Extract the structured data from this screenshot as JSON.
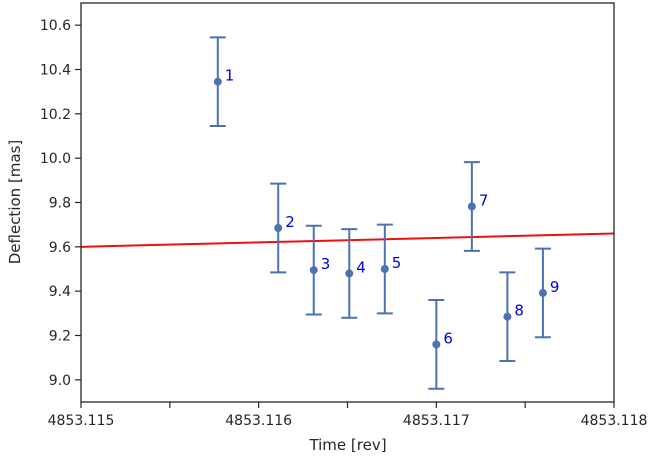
{
  "chart_data": {
    "type": "scatter",
    "title": "",
    "xlabel": "Time [rev]",
    "ylabel": "Deflection [mas]",
    "xlim": [
      4853.115,
      4853.118
    ],
    "ylim": [
      8.9,
      10.7
    ],
    "x_ticks": [
      4853.115,
      4853.1155,
      4853.116,
      4853.1165,
      4853.117,
      4853.1175,
      4853.118
    ],
    "x_tick_labels": [
      "4853.115",
      "",
      "4853.116",
      "",
      "4853.117",
      "",
      "4853.118"
    ],
    "y_ticks": [
      9.0,
      9.2,
      9.4,
      9.6,
      9.8,
      10.0,
      10.2,
      10.4,
      10.6
    ],
    "y_tick_labels": [
      "9.0",
      "9.2",
      "9.4",
      "9.6",
      "9.8",
      "10.0",
      "10.2",
      "10.4",
      "10.6"
    ],
    "grid": false,
    "colors": {
      "points": "#4c72b0",
      "fit_line": "#ee1111",
      "labels": "#0000dd",
      "axes": "#262626"
    },
    "series": [
      {
        "type": "errorbar",
        "points": [
          {
            "label": "1",
            "x": 4853.11577,
            "y": 10.345,
            "err": 0.2
          },
          {
            "label": "2",
            "x": 4853.11611,
            "y": 9.685,
            "err": 0.2
          },
          {
            "label": "3",
            "x": 4853.11631,
            "y": 9.495,
            "err": 0.2
          },
          {
            "label": "4",
            "x": 4853.11651,
            "y": 9.48,
            "err": 0.2
          },
          {
            "label": "5",
            "x": 4853.11671,
            "y": 9.5,
            "err": 0.2
          },
          {
            "label": "6",
            "x": 4853.117,
            "y": 9.16,
            "err": 0.2
          },
          {
            "label": "7",
            "x": 4853.1172,
            "y": 9.782,
            "err": 0.2
          },
          {
            "label": "8",
            "x": 4853.1174,
            "y": 9.285,
            "err": 0.2
          },
          {
            "label": "9",
            "x": 4853.1176,
            "y": 9.392,
            "err": 0.2
          }
        ]
      },
      {
        "type": "line",
        "x": [
          4853.115,
          4853.118
        ],
        "y": [
          9.6,
          9.66
        ]
      }
    ]
  }
}
